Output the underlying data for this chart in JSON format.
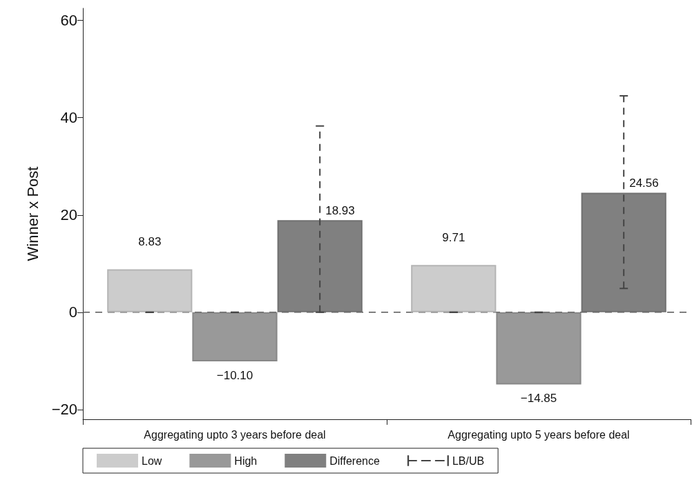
{
  "chart_data": {
    "type": "bar",
    "ylabel": "Winner x Post",
    "categories": [
      "Aggregating upto 3 years before deal",
      "Aggregating upto 5 years before deal"
    ],
    "series": [
      {
        "name": "Low",
        "color": "#cccccc",
        "values": [
          8.83,
          9.71
        ],
        "errors": [
          [
            0,
            0
          ],
          [
            0,
            0
          ]
        ],
        "value_labels": [
          "8.83",
          "9.71"
        ]
      },
      {
        "name": "High",
        "color": "#999999",
        "values": [
          -10.1,
          -14.85
        ],
        "errors": [
          [
            0,
            0
          ],
          [
            0,
            0
          ]
        ],
        "value_labels": [
          "−10.10",
          "−14.85"
        ]
      },
      {
        "name": "Difference",
        "color": "#808080",
        "values": [
          18.93,
          24.56
        ],
        "errors": [
          [
            0,
            38.3
          ],
          [
            4.9,
            44.5
          ]
        ],
        "value_labels": [
          "18.93",
          "24.56"
        ]
      }
    ],
    "ylim": [
      -22,
      62.5
    ],
    "yticks": [
      -20,
      0,
      20,
      40,
      60
    ],
    "ref_lines": [
      {
        "axis": "y",
        "value": 0,
        "line_style": "dashed"
      }
    ],
    "legend": "bottom",
    "grid": false,
    "annotations": [
      "LB/UB"
    ]
  }
}
